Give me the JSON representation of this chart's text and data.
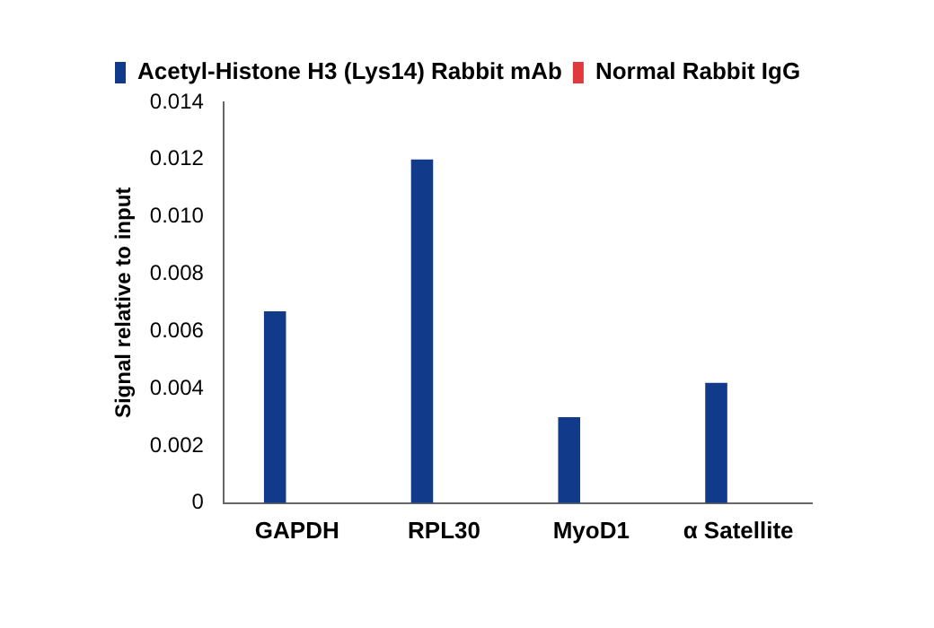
{
  "chart_data": {
    "type": "bar",
    "ylabel": "Signal relative to input",
    "categories": [
      "GAPDH",
      "RPL30",
      "MyoD1",
      "α Satellite"
    ],
    "series": [
      {
        "name": "Acetyl-Histone H3 (Lys14) Rabbit mAb",
        "color": "#123a8a",
        "values": [
          0.0067,
          0.012,
          0.003,
          0.0042
        ]
      },
      {
        "name": "Normal Rabbit IgG",
        "color": "#e03a3e",
        "values": [
          0,
          0,
          0,
          0
        ]
      }
    ],
    "ylim": [
      0,
      0.014
    ],
    "yticks": [
      0,
      0.002,
      0.004,
      0.006,
      0.008,
      {
        "value": 0.01,
        "label": "0.010"
      },
      0.012,
      0.014
    ],
    "grid": false,
    "legend": "top left"
  }
}
